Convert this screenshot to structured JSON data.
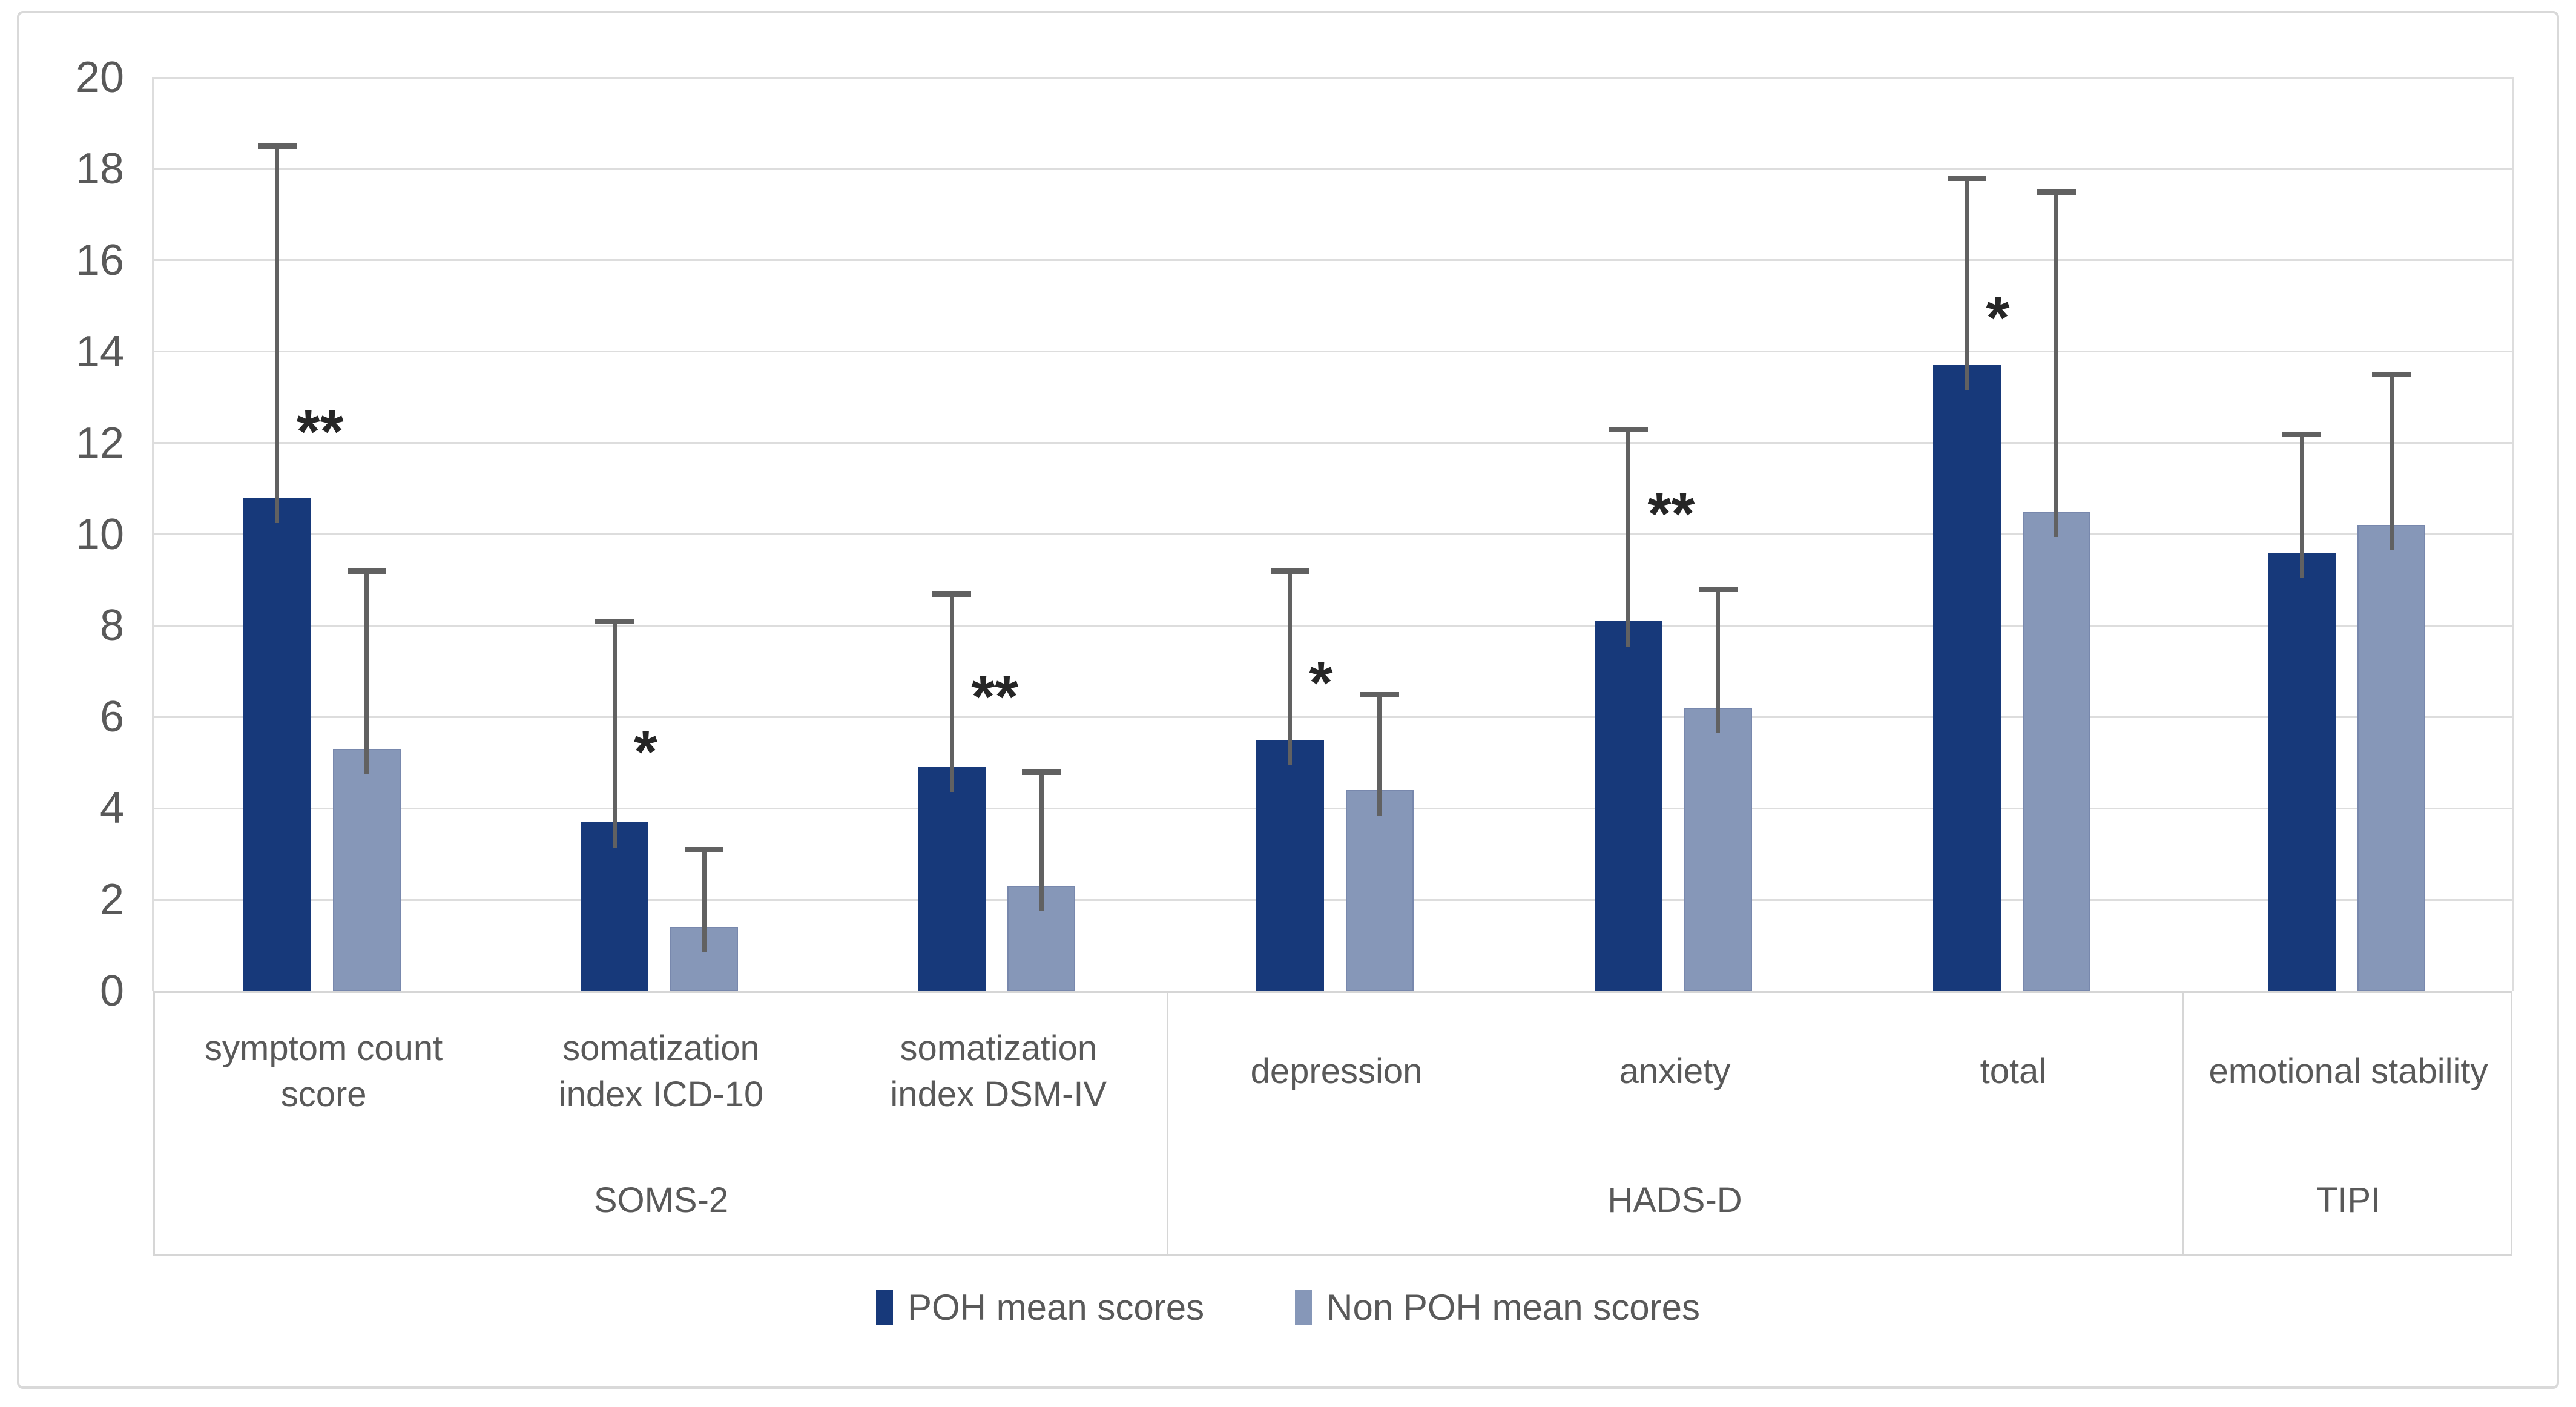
{
  "chart_data": {
    "type": "bar",
    "title": "",
    "xlabel": "",
    "ylabel": "",
    "ylim": [
      0,
      20
    ],
    "ytick_step": 2,
    "yticks": [
      0,
      2,
      4,
      6,
      8,
      10,
      12,
      14,
      16,
      18,
      20
    ],
    "grid": true,
    "legend_position": "bottom",
    "categories": [
      "symptom count score",
      "somatization index ICD-10",
      "somatization index DSM-IV",
      "depression",
      "anxiety",
      "total",
      "emotional stability"
    ],
    "category_groups": [
      {
        "label": "SOMS-2",
        "span": 3
      },
      {
        "label": "HADS-D",
        "span": 3
      },
      {
        "label": "TIPI",
        "span": 1
      }
    ],
    "series": [
      {
        "name": "POH mean scores",
        "color": "#17397A",
        "values": [
          10.8,
          3.7,
          4.9,
          5.5,
          8.1,
          13.7,
          9.6
        ],
        "error_upper": [
          18.5,
          8.1,
          8.7,
          9.2,
          12.3,
          17.8,
          12.2
        ]
      },
      {
        "name": "Non POH mean scores",
        "color": "#8697B8",
        "values": [
          5.3,
          1.4,
          2.3,
          4.4,
          6.2,
          10.5,
          10.2
        ],
        "error_upper": [
          9.2,
          3.1,
          4.8,
          6.5,
          8.8,
          17.5,
          13.5
        ]
      }
    ],
    "significance_markers": [
      "**",
      "*",
      "**",
      "*",
      "**",
      "*",
      ""
    ],
    "significance_y": [
      12.4,
      5.4,
      6.6,
      6.9,
      10.6,
      14.9,
      null
    ]
  },
  "legend": {
    "items": [
      {
        "label": "POH mean scores",
        "color": "#17397A"
      },
      {
        "label": "Non POH mean scores",
        "color": "#8697B8"
      }
    ]
  },
  "style": {
    "background": "#FFFFFF",
    "figure_border_color": "#D9D9D9",
    "gridline_color": "#DDDDDD",
    "axis_box_color": "#D6D6D6",
    "axis_text_color": "#595959",
    "bar_light_edge_color": "#7888AD",
    "error_bar_color": "#616161",
    "significance_color": "#262626"
  }
}
